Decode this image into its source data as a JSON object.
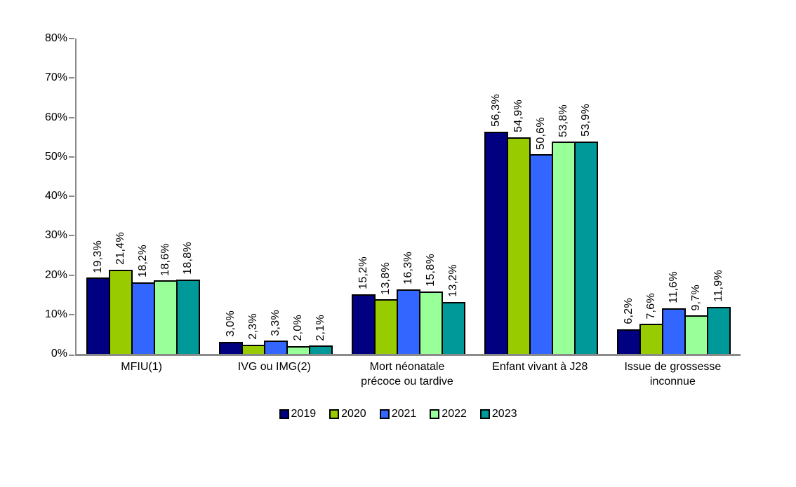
{
  "background": "#ffffff",
  "colors": {
    "axis": "#8a8a8a",
    "text": "#000000",
    "bar_border": "#000000"
  },
  "chart_data": {
    "type": "bar",
    "title": "",
    "xlabel": "",
    "ylabel": "",
    "grid": false,
    "ylim": [
      0,
      80
    ],
    "y_axis": {
      "min": 0,
      "max": 80,
      "step": 10,
      "tick_labels": [
        "0%",
        "10%",
        "20%",
        "30%",
        "40%",
        "50%",
        "60%",
        "70%",
        "80%"
      ]
    },
    "categories": [
      "MFIU(1)",
      "IVG ou IMG(2)",
      "Mort néonatale précoce ou tardive",
      "Enfant vivant à J28",
      "Issue de grossesse inconnue"
    ],
    "category_display_lines": [
      [
        "MFIU(1)"
      ],
      [
        "IVG ou IMG(2)"
      ],
      [
        "Mort néonatale",
        "précoce ou tardive"
      ],
      [
        "Enfant vivant à J28"
      ],
      [
        "Issue de grossesse",
        "inconnue"
      ]
    ],
    "series": [
      {
        "name": "2019",
        "color": "#000080",
        "values": [
          19.3,
          3.0,
          15.2,
          56.3,
          6.2
        ],
        "labels": [
          "19,3%",
          "3,0%",
          "15,2%",
          "56,3%",
          "6,2%"
        ]
      },
      {
        "name": "2020",
        "color": "#99CC00",
        "values": [
          21.4,
          2.3,
          13.8,
          54.9,
          7.6
        ],
        "labels": [
          "21,4%",
          "2,3%",
          "13,8%",
          "54,9%",
          "7,6%"
        ]
      },
      {
        "name": "2021",
        "color": "#3366FF",
        "values": [
          18.2,
          3.3,
          16.3,
          50.6,
          11.6
        ],
        "labels": [
          "18,2%",
          "3,3%",
          "16,3%",
          "50,6%",
          "11,6%"
        ]
      },
      {
        "name": "2022",
        "color": "#99FF99",
        "values": [
          18.6,
          2.0,
          15.8,
          53.8,
          9.7
        ],
        "labels": [
          "18,6%",
          "2,0%",
          "15,8%",
          "53,8%",
          "9,7%"
        ]
      },
      {
        "name": "2023",
        "color": "#009999",
        "values": [
          18.8,
          2.1,
          13.2,
          53.9,
          11.9
        ],
        "labels": [
          "18,8%",
          "2,1%",
          "13,2%",
          "53,9%",
          "11,9%"
        ]
      }
    ],
    "bar_label_rotation_deg": 90,
    "legend": {
      "position": "bottom",
      "entries": [
        "2019",
        "2020",
        "2021",
        "2022",
        "2023"
      ]
    }
  }
}
